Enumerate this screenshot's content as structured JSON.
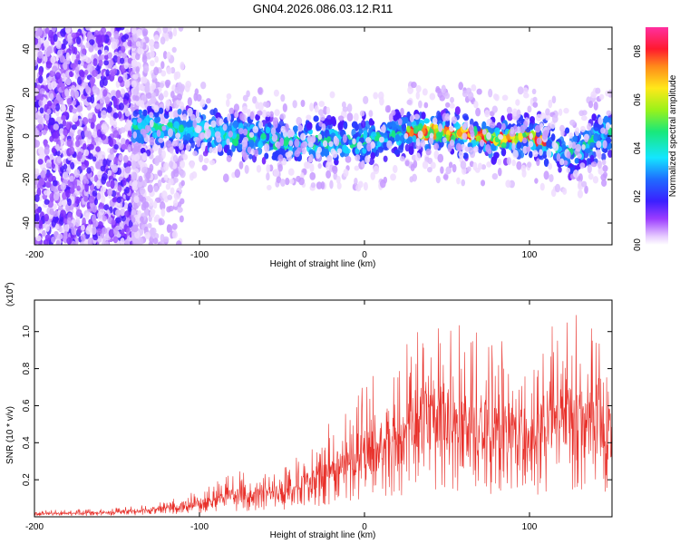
{
  "chart_data": [
    {
      "type": "heatmap",
      "title": "GN04.2026.086.03.12.R11",
      "xlabel": "Height of straight line (km)",
      "ylabel": "Frequency (Hz)",
      "xlim": [
        -200,
        150
      ],
      "ylim": [
        -50,
        50
      ],
      "x_ticks": [
        -200,
        -100,
        0,
        100
      ],
      "y_ticks": [
        -40,
        -20,
        0,
        20,
        40
      ],
      "colorbar": {
        "label": "Normalized spectral amplitude",
        "range": [
          0,
          0.9
        ],
        "ticks": [
          "0.0",
          "0.2",
          "0.4",
          "0.6",
          "0.8"
        ]
      },
      "ridge_frequency_hz": [
        {
          "x": -140,
          "y": 4
        },
        {
          "x": -100,
          "y": 3
        },
        {
          "x": -80,
          "y": 0
        },
        {
          "x": -40,
          "y": -3
        },
        {
          "x": 0,
          "y": -2
        },
        {
          "x": 30,
          "y": 2
        },
        {
          "x": 60,
          "y": 1
        },
        {
          "x": 80,
          "y": -2
        },
        {
          "x": 100,
          "y": 0
        },
        {
          "x": 125,
          "y": -8
        },
        {
          "x": 148,
          "y": 2
        }
      ]
    },
    {
      "type": "line",
      "xlabel": "Height of straight line (km)",
      "ylabel": "SNR (10 * v/v)",
      "y_scale_label": "(x10",
      "y_scale_exponent": "4",
      "y_scale_suffix": ")",
      "xlim": [
        -200,
        150
      ],
      "ylim": [
        0,
        1.17
      ],
      "x_ticks": [
        -200,
        -100,
        0,
        100
      ],
      "y_ticks": [
        "0.2",
        "0.4",
        "0.6",
        "0.8",
        "1.0"
      ],
      "color": "#e8302a",
      "envelope": {
        "x": [
          -200,
          -160,
          -140,
          -120,
          -100,
          -80,
          -60,
          -40,
          -20,
          0,
          20,
          40,
          60,
          80,
          100,
          120,
          140,
          150
        ],
        "y": [
          0.03,
          0.035,
          0.05,
          0.08,
          0.14,
          0.2,
          0.22,
          0.28,
          0.45,
          0.6,
          0.75,
          0.95,
          0.85,
          0.8,
          0.7,
          0.95,
          0.9,
          0.75
        ]
      }
    }
  ]
}
